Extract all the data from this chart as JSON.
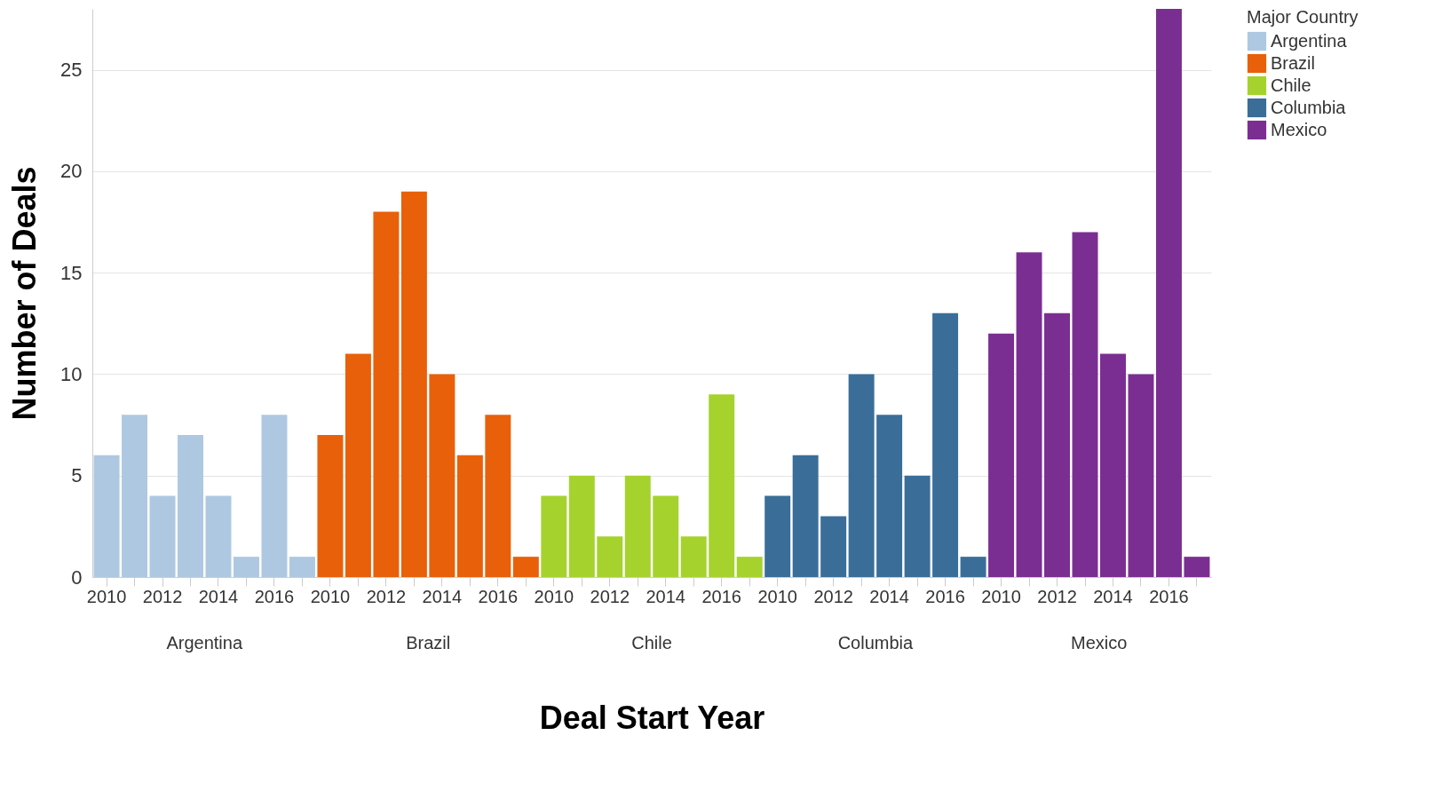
{
  "chart_data": {
    "type": "bar",
    "xlabel": "Deal Start Year",
    "ylabel": "Number of Deals",
    "legend_title": "Major Country",
    "legend": "top right",
    "grid": "y",
    "categories": [
      "2010",
      null,
      "2012",
      null,
      "2014",
      null,
      "2016",
      null,
      "2010",
      null,
      "2012",
      null,
      "2014",
      null,
      "2016",
      null,
      "2010",
      null,
      "2012",
      null,
      "2014",
      null,
      "2016",
      null,
      "2010",
      null,
      "2012",
      null,
      "2014",
      null,
      "2016",
      null,
      "2010",
      null,
      "2012",
      null,
      "2014",
      null,
      "2016",
      null
    ],
    "ylim": [
      0,
      28
    ],
    "yticks": [
      0,
      5,
      10,
      15,
      20,
      25
    ],
    "annotations": [
      "Argentina",
      "Brazil",
      "Chile",
      "Columbia",
      "Mexico"
    ],
    "series": [
      {
        "name": "Argentina",
        "color": "#aec8e2",
        "values": [
          6,
          8,
          4,
          7,
          4,
          1,
          8,
          1,
          null,
          null,
          null,
          null,
          null,
          null,
          null,
          null,
          null,
          null,
          null,
          null,
          null,
          null,
          null,
          null,
          null,
          null,
          null,
          null,
          null,
          null,
          null,
          null,
          null,
          null,
          null,
          null,
          null,
          null,
          null,
          null
        ]
      },
      {
        "name": "Brazil",
        "color": "#e8600a",
        "values": [
          null,
          null,
          null,
          null,
          null,
          null,
          null,
          null,
          7,
          11,
          18,
          19,
          10,
          6,
          8,
          1,
          null,
          null,
          null,
          null,
          null,
          null,
          null,
          null,
          null,
          null,
          null,
          null,
          null,
          null,
          null,
          null,
          null,
          null,
          null,
          null,
          null,
          null,
          null,
          null
        ]
      },
      {
        "name": "Chile",
        "color": "#a6d22e",
        "values": [
          null,
          null,
          null,
          null,
          null,
          null,
          null,
          null,
          null,
          null,
          null,
          null,
          null,
          null,
          null,
          null,
          4,
          5,
          2,
          5,
          4,
          2,
          9,
          1,
          null,
          null,
          null,
          null,
          null,
          null,
          null,
          null,
          null,
          null,
          null,
          null,
          null,
          null,
          null,
          null
        ]
      },
      {
        "name": "Columbia",
        "color": "#3a6e99",
        "values": [
          null,
          null,
          null,
          null,
          null,
          null,
          null,
          null,
          null,
          null,
          null,
          null,
          null,
          null,
          null,
          null,
          null,
          null,
          null,
          null,
          null,
          null,
          null,
          null,
          4,
          6,
          3,
          10,
          8,
          5,
          13,
          1,
          null,
          null,
          null,
          null,
          null,
          null,
          null,
          null
        ]
      },
      {
        "name": "Mexico",
        "color": "#7b2e92",
        "values": [
          null,
          null,
          null,
          null,
          null,
          null,
          null,
          null,
          null,
          null,
          null,
          null,
          null,
          null,
          null,
          null,
          null,
          null,
          null,
          null,
          null,
          null,
          null,
          null,
          null,
          null,
          null,
          null,
          null,
          null,
          null,
          null,
          12,
          16,
          13,
          17,
          11,
          10,
          28,
          1
        ]
      }
    ]
  }
}
